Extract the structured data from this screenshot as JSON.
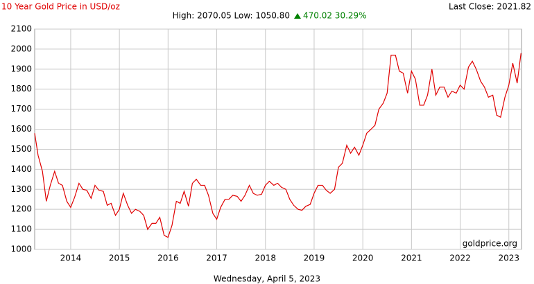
{
  "chart_data": {
    "type": "line",
    "title": "10 Year Gold Price in USD/oz",
    "subtitle": "High: 2070.05 Low: 1050.80",
    "change": "470.02 30.29%",
    "last_close": "Last Close: 2021.82",
    "watermark": "goldprice.org",
    "date": "Wednesday, April 5, 2023",
    "color": "#e00000",
    "grid": true,
    "xlim": [
      2013.26,
      2023.26
    ],
    "xticks": [
      2014,
      2015,
      2016,
      2017,
      2018,
      2019,
      2020,
      2021,
      2022,
      2023
    ],
    "ylim": [
      1000,
      2100
    ],
    "yticks": [
      1000,
      1100,
      1200,
      1300,
      1400,
      1500,
      1600,
      1700,
      1800,
      1900,
      2000,
      2100
    ],
    "x": [
      2013.26,
      2013.33,
      2013.42,
      2013.5,
      2013.58,
      2013.67,
      2013.75,
      2013.83,
      2013.92,
      2014.0,
      2014.08,
      2014.17,
      2014.25,
      2014.33,
      2014.42,
      2014.5,
      2014.58,
      2014.67,
      2014.75,
      2014.83,
      2014.92,
      2015.0,
      2015.08,
      2015.17,
      2015.25,
      2015.33,
      2015.42,
      2015.5,
      2015.58,
      2015.67,
      2015.75,
      2015.83,
      2015.92,
      2016.0,
      2016.08,
      2016.17,
      2016.25,
      2016.33,
      2016.42,
      2016.5,
      2016.58,
      2016.67,
      2016.75,
      2016.83,
      2016.92,
      2017.0,
      2017.08,
      2017.17,
      2017.25,
      2017.33,
      2017.42,
      2017.5,
      2017.58,
      2017.67,
      2017.75,
      2017.83,
      2017.92,
      2018.0,
      2018.08,
      2018.17,
      2018.25,
      2018.33,
      2018.42,
      2018.5,
      2018.58,
      2018.67,
      2018.75,
      2018.83,
      2018.92,
      2019.0,
      2019.08,
      2019.17,
      2019.25,
      2019.33,
      2019.42,
      2019.5,
      2019.58,
      2019.67,
      2019.75,
      2019.83,
      2019.92,
      2020.0,
      2020.08,
      2020.17,
      2020.25,
      2020.33,
      2020.42,
      2020.5,
      2020.58,
      2020.67,
      2020.75,
      2020.83,
      2020.92,
      2021.0,
      2021.08,
      2021.17,
      2021.25,
      2021.33,
      2021.42,
      2021.5,
      2021.58,
      2021.67,
      2021.75,
      2021.83,
      2021.92,
      2022.0,
      2022.08,
      2022.17,
      2022.25,
      2022.33,
      2022.42,
      2022.5,
      2022.58,
      2022.67,
      2022.75,
      2022.83,
      2022.92,
      2023.0,
      2023.08,
      2023.17,
      2023.25
    ],
    "values": [
      1580,
      1470,
      1390,
      1240,
      1320,
      1390,
      1330,
      1320,
      1240,
      1210,
      1260,
      1330,
      1300,
      1295,
      1255,
      1320,
      1295,
      1290,
      1220,
      1230,
      1170,
      1200,
      1280,
      1220,
      1180,
      1200,
      1190,
      1170,
      1100,
      1130,
      1130,
      1160,
      1070,
      1060,
      1120,
      1240,
      1230,
      1290,
      1215,
      1330,
      1350,
      1320,
      1320,
      1270,
      1180,
      1150,
      1210,
      1250,
      1250,
      1270,
      1265,
      1240,
      1270,
      1320,
      1280,
      1270,
      1275,
      1320,
      1340,
      1320,
      1330,
      1310,
      1300,
      1250,
      1220,
      1200,
      1195,
      1215,
      1225,
      1280,
      1320,
      1320,
      1295,
      1280,
      1300,
      1410,
      1430,
      1520,
      1480,
      1510,
      1470,
      1520,
      1580,
      1600,
      1620,
      1700,
      1730,
      1780,
      1970,
      1970,
      1890,
      1880,
      1780,
      1890,
      1850,
      1720,
      1720,
      1770,
      1900,
      1770,
      1810,
      1810,
      1760,
      1790,
      1780,
      1820,
      1800,
      1910,
      1940,
      1900,
      1840,
      1810,
      1760,
      1770,
      1670,
      1660,
      1760,
      1820,
      1930,
      1830,
      1980
    ]
  }
}
